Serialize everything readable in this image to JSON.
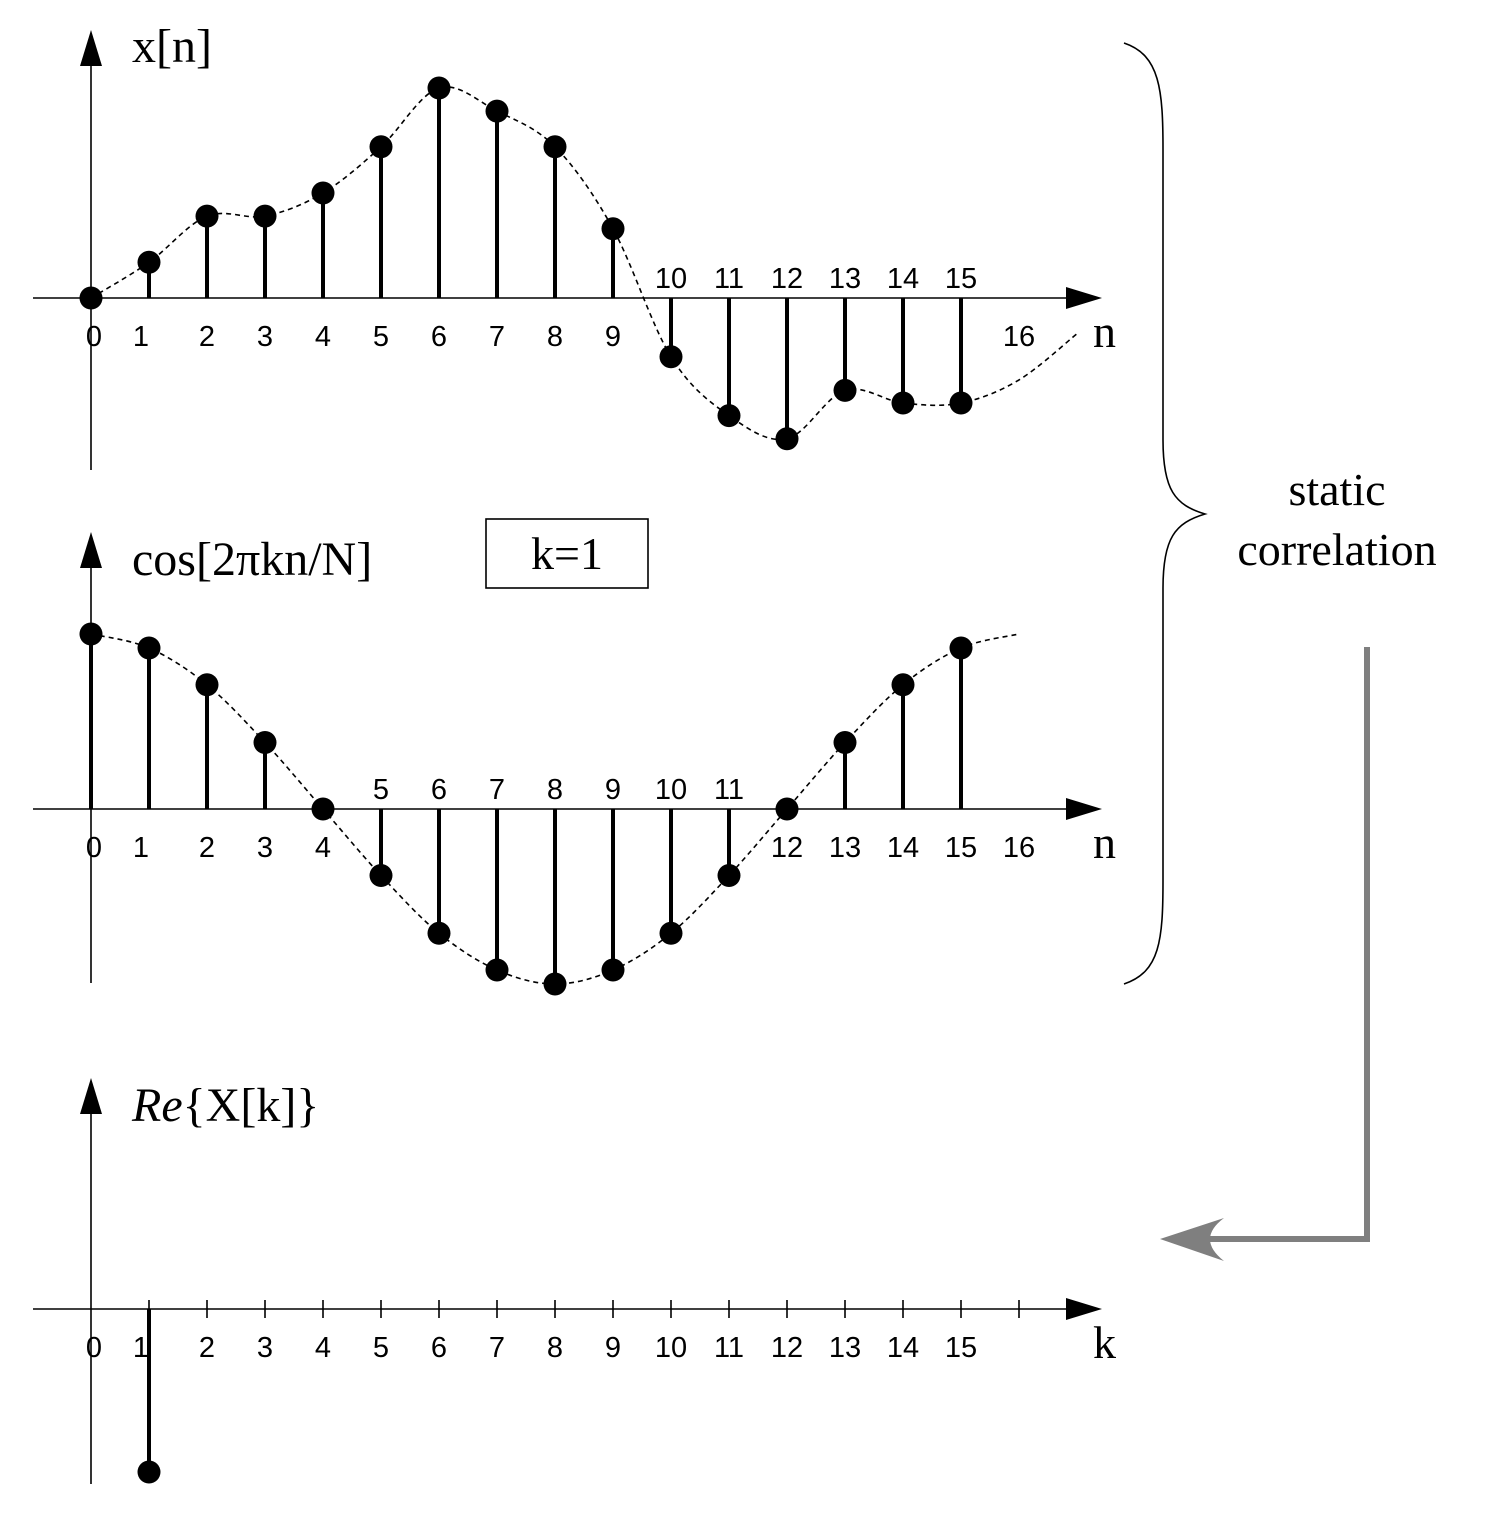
{
  "panels": [
    {
      "id": "x",
      "title": "x[n]",
      "axis_label": "n",
      "values": [
        0,
        0.17,
        0.39,
        0.39,
        0.5,
        0.72,
        1.0,
        0.89,
        0.72,
        0.33,
        -0.28,
        -0.56,
        -0.67,
        -0.44,
        -0.5,
        -0.5
      ],
      "envelope_tail": [
        -0.39,
        -0.17
      ],
      "tick_labels": [
        "0",
        "1",
        "2",
        "3",
        "4",
        "5",
        "6",
        "7",
        "8",
        "9",
        "10",
        "11",
        "12",
        "13",
        "14",
        "15",
        "16"
      ]
    },
    {
      "id": "cos",
      "title": "cos[2πkn/N]",
      "axis_label": "n",
      "k_box": "k=1",
      "values": [
        1.0,
        0.92,
        0.71,
        0.38,
        0,
        -0.38,
        -0.71,
        -0.92,
        -1.0,
        -0.92,
        -0.71,
        -0.38,
        0,
        0.38,
        0.71,
        0.92
      ],
      "envelope_tail": [
        1.0
      ],
      "tick_labels": [
        "0",
        "1",
        "2",
        "3",
        "4",
        "5",
        "6",
        "7",
        "8",
        "9",
        "10",
        "11",
        "12",
        "13",
        "14",
        "15",
        "16"
      ]
    },
    {
      "id": "re",
      "title_italic": "Re",
      "title_rest": "{X[k]}",
      "axis_label": "k",
      "stems": [
        {
          "k": 1,
          "value": -1.0
        }
      ],
      "tick_labels": [
        "0",
        "1",
        "2",
        "3",
        "4",
        "5",
        "6",
        "7",
        "8",
        "9",
        "10",
        "11",
        "12",
        "13",
        "14",
        "15"
      ]
    }
  ],
  "side_note": [
    "static",
    "correlation"
  ],
  "colors": {
    "ink": "#000000",
    "arrow": "#7f7f7f"
  }
}
